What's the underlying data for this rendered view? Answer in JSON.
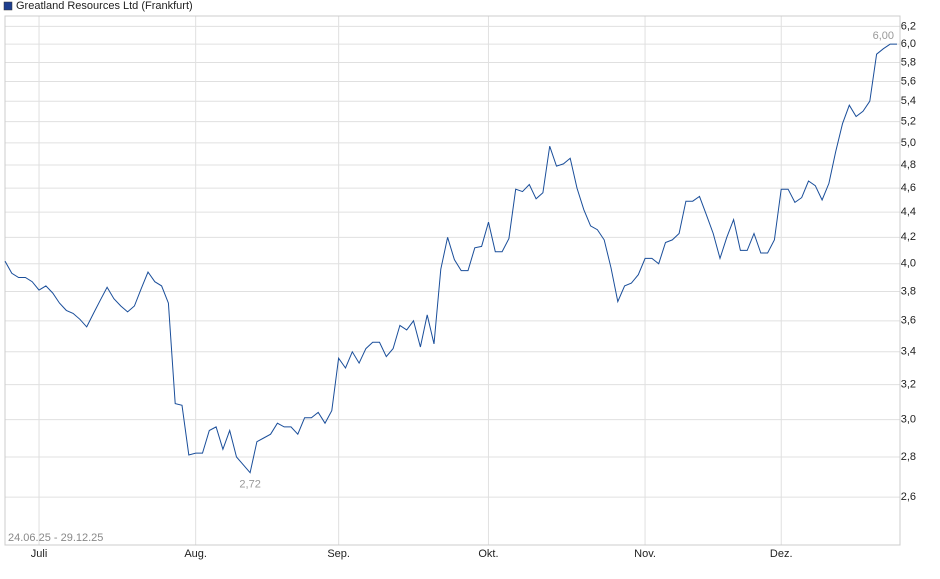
{
  "chart_data": {
    "type": "line",
    "period": "24.06.25 - 29.12.25",
    "categories": [
      null,
      null,
      null,
      null,
      null,
      "Juli",
      null,
      null,
      null,
      null,
      null,
      null,
      null,
      null,
      null,
      null,
      null,
      null,
      null,
      null,
      null,
      null,
      null,
      null,
      null,
      null,
      null,
      null,
      "Aug.",
      null,
      null,
      null,
      null,
      null,
      null,
      null,
      null,
      null,
      null,
      null,
      null,
      null,
      null,
      null,
      null,
      null,
      null,
      null,
      null,
      "Sep.",
      null,
      null,
      null,
      null,
      null,
      null,
      null,
      null,
      null,
      null,
      null,
      null,
      null,
      null,
      null,
      null,
      null,
      null,
      null,
      null,
      null,
      "Okt.",
      null,
      null,
      null,
      null,
      null,
      null,
      null,
      null,
      null,
      null,
      null,
      null,
      null,
      null,
      null,
      null,
      null,
      null,
      null,
      null,
      null,
      null,
      "Nov.",
      null,
      null,
      null,
      null,
      null,
      null,
      null,
      null,
      null,
      null,
      null,
      null,
      null,
      null,
      null,
      null,
      null,
      null,
      null,
      "Dez.",
      null,
      null,
      null,
      null,
      null,
      null,
      null,
      null,
      null,
      null,
      null,
      null,
      null,
      null,
      null,
      null,
      null
    ],
    "series": [
      {
        "name": "Greatland Resources Ltd (Frankfurt)",
        "color": "#1a4e9a",
        "values": [
          4.02,
          3.93,
          3.9,
          3.9,
          3.87,
          3.81,
          3.84,
          3.79,
          3.72,
          3.67,
          3.65,
          3.61,
          3.56,
          3.65,
          3.74,
          3.83,
          3.75,
          3.7,
          3.66,
          3.7,
          3.82,
          3.94,
          3.87,
          3.84,
          3.72,
          3.09,
          3.08,
          2.81,
          2.82,
          2.82,
          2.94,
          2.96,
          2.84,
          2.94,
          2.8,
          2.76,
          2.72,
          2.88,
          2.9,
          2.92,
          2.98,
          2.96,
          2.96,
          2.92,
          3.01,
          3.01,
          3.04,
          2.98,
          3.05,
          3.36,
          3.3,
          3.4,
          3.33,
          3.42,
          3.46,
          3.46,
          3.37,
          3.42,
          3.57,
          3.54,
          3.6,
          3.43,
          3.64,
          3.45,
          3.96,
          4.2,
          4.03,
          3.95,
          3.95,
          4.12,
          4.13,
          4.32,
          4.09,
          4.09,
          4.19,
          4.59,
          4.57,
          4.63,
          4.51,
          4.56,
          4.97,
          4.79,
          4.81,
          4.86,
          4.6,
          4.42,
          4.29,
          4.26,
          4.18,
          3.97,
          3.73,
          3.84,
          3.86,
          3.92,
          4.04,
          4.04,
          4.0,
          4.16,
          4.18,
          4.23,
          4.49,
          4.49,
          4.53,
          4.38,
          4.23,
          4.04,
          4.2,
          4.34,
          4.1,
          4.1,
          4.23,
          4.08,
          4.08,
          4.18,
          4.59,
          4.59,
          4.48,
          4.52,
          4.66,
          4.62,
          4.5,
          4.64,
          4.92,
          5.18,
          5.36,
          5.25,
          5.3,
          5.4,
          5.89,
          5.95,
          6.0,
          6.0
        ],
        "value_labels": [
          null,
          null,
          null,
          null,
          null,
          null,
          null,
          null,
          null,
          null,
          null,
          null,
          null,
          null,
          null,
          null,
          null,
          null,
          null,
          null,
          null,
          null,
          null,
          null,
          null,
          null,
          null,
          null,
          null,
          null,
          null,
          null,
          null,
          null,
          null,
          null,
          "2,72",
          null,
          null,
          null,
          null,
          null,
          null,
          null,
          null,
          null,
          null,
          null,
          null,
          null,
          null,
          null,
          null,
          null,
          null,
          null,
          null,
          null,
          null,
          null,
          null,
          null,
          null,
          null,
          null,
          null,
          null,
          null,
          null,
          null,
          null,
          null,
          null,
          null,
          null,
          null,
          null,
          null,
          null,
          null,
          null,
          null,
          null,
          null,
          null,
          null,
          null,
          null,
          null,
          null,
          null,
          null,
          null,
          null,
          null,
          null,
          null,
          null,
          null,
          null,
          null,
          null,
          null,
          null,
          null,
          null,
          null,
          null,
          null,
          null,
          null,
          null,
          null,
          null,
          null,
          null,
          null,
          null,
          null,
          null,
          null,
          null,
          null,
          null,
          null,
          null,
          null,
          null,
          null,
          null,
          null,
          "6,00"
        ]
      }
    ],
    "ylim": [
      2.38,
      6.32
    ],
    "ylog": true,
    "grid": true,
    "yticks": [
      {
        "value": 2.6,
        "label": "2,6"
      },
      {
        "value": 2.8,
        "label": "2,8"
      },
      {
        "value": 3.0,
        "label": "3,0"
      },
      {
        "value": 3.2,
        "label": "3,2"
      },
      {
        "value": 3.4,
        "label": "3,4"
      },
      {
        "value": 3.6,
        "label": "3,6"
      },
      {
        "value": 3.8,
        "label": "3,8"
      },
      {
        "value": 4.0,
        "label": "4,0"
      },
      {
        "value": 4.2,
        "label": "4,2"
      },
      {
        "value": 4.4,
        "label": "4,4"
      },
      {
        "value": 4.6,
        "label": "4,6"
      },
      {
        "value": 4.8,
        "label": "4,8"
      },
      {
        "value": 5.0,
        "label": "5,0"
      },
      {
        "value": 5.2,
        "label": "5,2"
      },
      {
        "value": 5.4,
        "label": "5,4"
      },
      {
        "value": 5.6,
        "label": "5,6"
      },
      {
        "value": 5.8,
        "label": "5,8"
      },
      {
        "value": 6.0,
        "label": "6,0"
      },
      {
        "value": 6.2,
        "label": "6,2"
      }
    ]
  }
}
